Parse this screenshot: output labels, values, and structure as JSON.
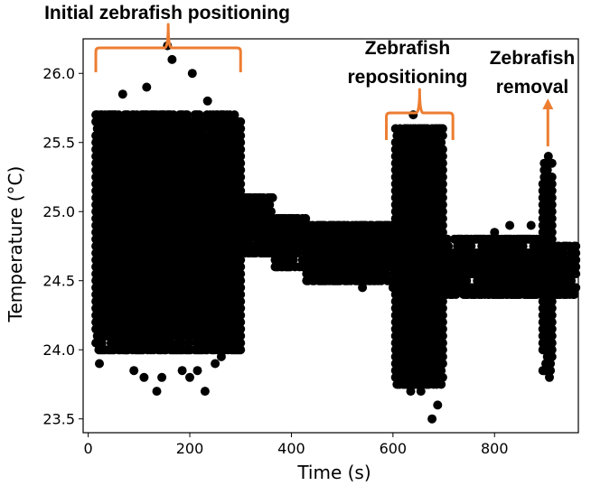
{
  "chart_data": {
    "type": "scatter",
    "xlabel": "Time (s)",
    "ylabel": "Temperature (°C)",
    "xlim": [
      -10,
      965
    ],
    "ylim": [
      23.4,
      26.25
    ],
    "x_ticks": [
      0,
      200,
      400,
      600,
      800
    ],
    "y_ticks": [
      23.5,
      24.0,
      24.5,
      25.0,
      25.5,
      26.0
    ],
    "y_tick_labels": [
      "23.5",
      "24.0",
      "24.5",
      "25.0",
      "25.5",
      "26.0"
    ],
    "grid": false,
    "marker_color": "#000000",
    "annotation_color": "#ED7D31",
    "temperature_step": 0.05,
    "sampling_interval_s": 3,
    "segments": [
      {
        "x_start": 15,
        "x_end": 300,
        "y_min": 24.0,
        "y_max": 25.7
      },
      {
        "x_start": 300,
        "x_end": 365,
        "y_min": 24.7,
        "y_max": 25.1
      },
      {
        "x_start": 365,
        "x_end": 430,
        "y_min": 24.6,
        "y_max": 24.95
      },
      {
        "x_start": 430,
        "x_end": 605,
        "y_min": 24.5,
        "y_max": 24.9
      },
      {
        "x_start": 605,
        "x_end": 700,
        "y_min": 23.75,
        "y_max": 25.6
      },
      {
        "x_start": 700,
        "x_end": 895,
        "y_min": 24.4,
        "y_max": 24.8
      },
      {
        "x_start": 895,
        "x_end": 915,
        "y_min": 23.85,
        "y_max": 25.35
      },
      {
        "x_start": 915,
        "x_end": 960,
        "y_min": 24.4,
        "y_max": 24.75
      }
    ],
    "outliers": [
      {
        "x": 156,
        "y": 26.2
      },
      {
        "x": 165,
        "y": 26.1
      },
      {
        "x": 68,
        "y": 25.85
      },
      {
        "x": 115,
        "y": 25.9
      },
      {
        "x": 205,
        "y": 26.0
      },
      {
        "x": 235,
        "y": 25.8
      },
      {
        "x": 22,
        "y": 23.9
      },
      {
        "x": 45,
        "y": 24.0
      },
      {
        "x": 90,
        "y": 23.85
      },
      {
        "x": 110,
        "y": 23.8
      },
      {
        "x": 135,
        "y": 23.7
      },
      {
        "x": 145,
        "y": 23.8
      },
      {
        "x": 185,
        "y": 23.85
      },
      {
        "x": 200,
        "y": 23.8
      },
      {
        "x": 215,
        "y": 23.85
      },
      {
        "x": 230,
        "y": 23.7
      },
      {
        "x": 250,
        "y": 23.9
      },
      {
        "x": 262,
        "y": 23.95
      },
      {
        "x": 75,
        "y": 24.0
      },
      {
        "x": 270,
        "y": 25.6
      },
      {
        "x": 283,
        "y": 25.5
      },
      {
        "x": 320,
        "y": 25.1
      },
      {
        "x": 350,
        "y": 25.0
      },
      {
        "x": 555,
        "y": 24.9
      },
      {
        "x": 640,
        "y": 25.7
      },
      {
        "x": 650,
        "y": 25.6
      },
      {
        "x": 635,
        "y": 23.7
      },
      {
        "x": 655,
        "y": 23.7
      },
      {
        "x": 668,
        "y": 23.75
      },
      {
        "x": 677,
        "y": 23.5
      },
      {
        "x": 688,
        "y": 23.6
      },
      {
        "x": 695,
        "y": 23.8
      },
      {
        "x": 707,
        "y": 24.8
      },
      {
        "x": 800,
        "y": 24.85
      },
      {
        "x": 830,
        "y": 24.9
      },
      {
        "x": 872,
        "y": 24.9
      },
      {
        "x": 906,
        "y": 25.4
      },
      {
        "x": 908,
        "y": 23.8
      },
      {
        "x": 540,
        "y": 24.45
      },
      {
        "x": 600,
        "y": 24.45
      },
      {
        "x": 760,
        "y": 24.45
      }
    ],
    "annotations": [
      {
        "text": "Initial zebrafish positioning",
        "x_start": 15,
        "x_end": 300
      },
      {
        "text": "Zebrafish repositioning",
        "x_start": 605,
        "x_end": 700
      },
      {
        "text": "Zebrafish removal",
        "x": 905
      }
    ]
  }
}
